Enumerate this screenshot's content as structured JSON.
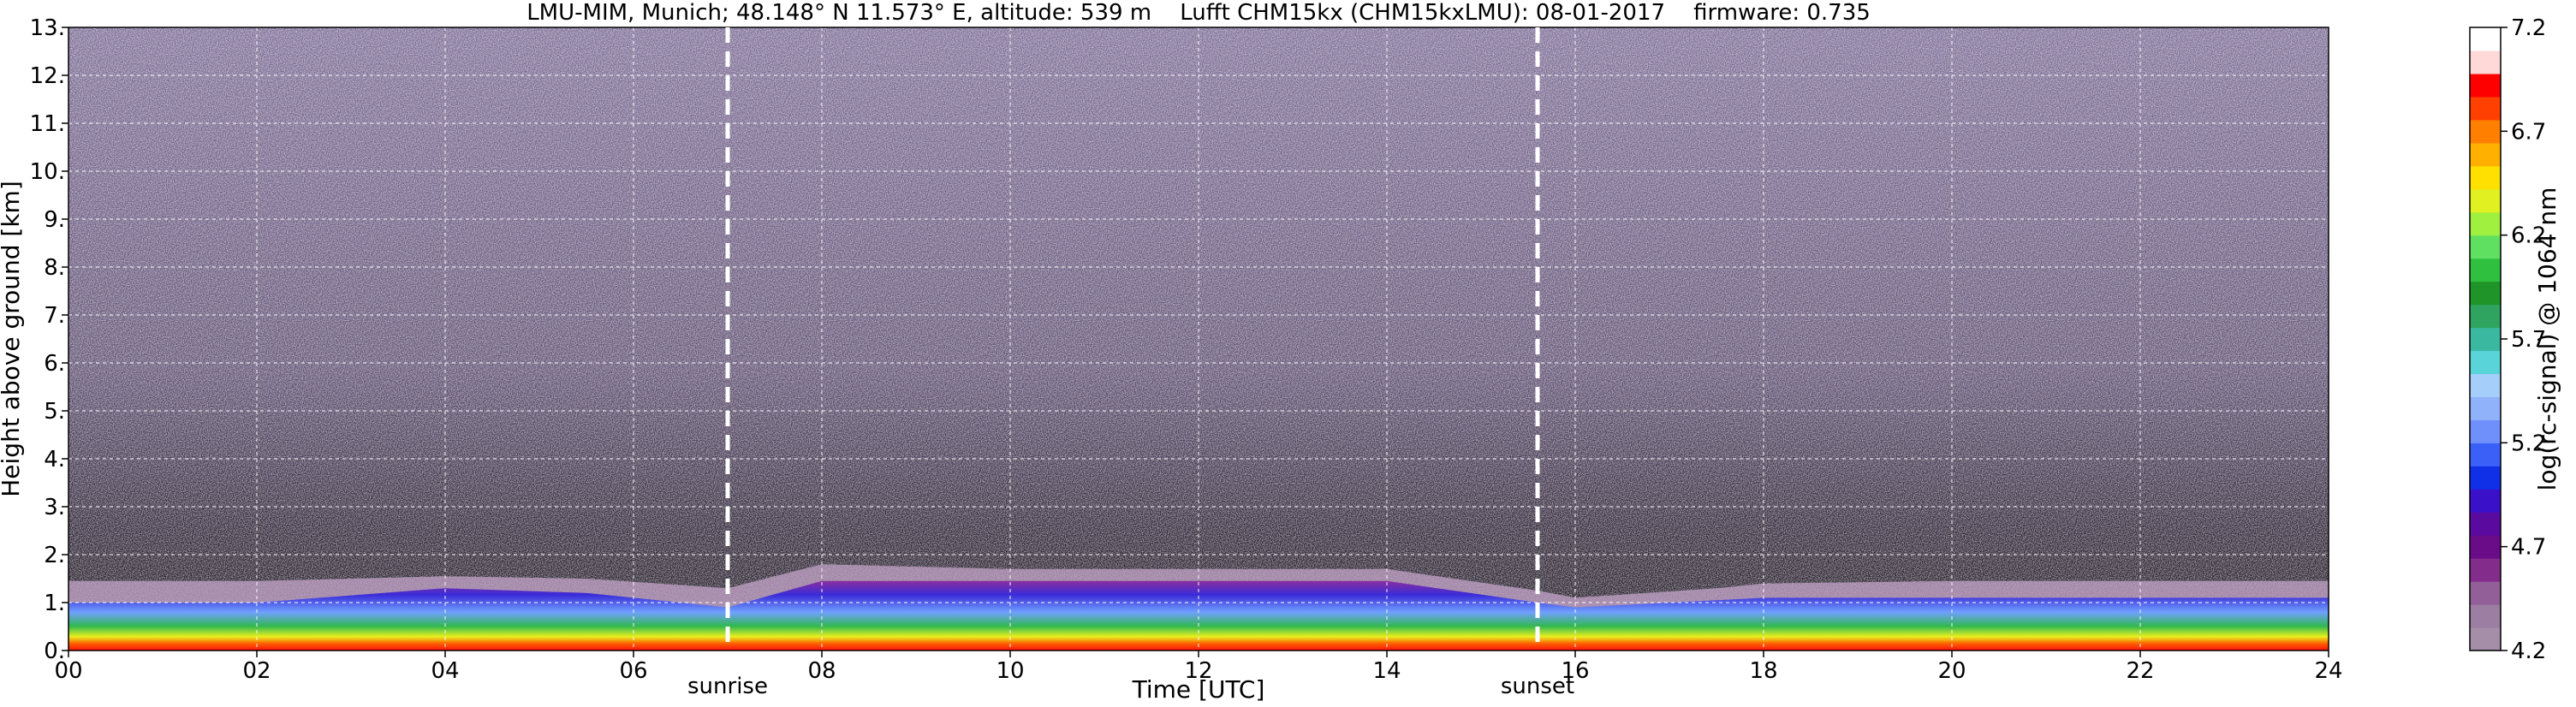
{
  "chart_data": {
    "type": "heatmap",
    "title": "LMU-MIM, Munich; 48.148° N 11.573° E, altitude: 539 m    Lufft CHM15kx (CHM15kxLMU): 08-01-2017    firmware: 0.735",
    "xlabel": "Time [UTC]",
    "ylabel": "Height above ground [km]",
    "xlim": [
      0,
      24
    ],
    "ylim": [
      0,
      13
    ],
    "xticks": [
      0,
      2,
      4,
      6,
      8,
      10,
      12,
      14,
      16,
      18,
      20,
      22,
      24
    ],
    "xtick_labels": [
      "00",
      "02",
      "04",
      "06",
      "08",
      "10",
      "12",
      "14",
      "16",
      "18",
      "20",
      "22",
      "24"
    ],
    "yticks": [
      0,
      1,
      2,
      3,
      4,
      5,
      6,
      7,
      8,
      9,
      10,
      11,
      12,
      13
    ],
    "ytick_labels": [
      "0.",
      "1.",
      "2.",
      "3.",
      "4.",
      "5.",
      "6.",
      "7.",
      "8.",
      "9.",
      "10.",
      "11.",
      "12.",
      "13."
    ],
    "grid": true,
    "colorbar": {
      "label": "log(rc-signal) @ 1064 nm",
      "range": [
        4.2,
        7.2
      ],
      "ticks": [
        4.2,
        4.7,
        5.2,
        5.7,
        6.2,
        6.7,
        7.2
      ],
      "tick_labels": [
        "4.2",
        "4.7",
        "5.2",
        "5.7",
        "6.2",
        "6.7",
        "7.2"
      ],
      "colors": [
        "#a48ea8",
        "#9c7ea2",
        "#935f99",
        "#832c8c",
        "#6a0c88",
        "#5a0a9e",
        "#3a10c8",
        "#1030e8",
        "#3a60f8",
        "#6f90fb",
        "#90b2fb",
        "#a6cefa",
        "#59d4d8",
        "#3ab8a0",
        "#2ea460",
        "#1f9428",
        "#30c040",
        "#60e060",
        "#a0f040",
        "#e0f020",
        "#ffe000",
        "#ffb000",
        "#ff8000",
        "#ff4000",
        "#ff0000",
        "#ffd8d8",
        "#ffffff"
      ]
    },
    "annotations": [
      {
        "label": "sunrise",
        "x": 7.0
      },
      {
        "label": "sunset",
        "x": 15.6
      }
    ],
    "layers": [
      {
        "t": [
          0,
          2,
          4,
          5.5,
          7,
          8,
          10,
          12,
          14,
          15.6,
          16,
          17.5,
          18,
          20,
          22,
          24
        ],
        "top": [
          1.45,
          1.45,
          1.55,
          1.5,
          1.3,
          1.8,
          1.7,
          1.7,
          1.7,
          1.25,
          1.1,
          1.3,
          1.4,
          1.45,
          1.45,
          1.45
        ]
      },
      {
        "t": [
          0,
          2,
          4,
          5.5,
          7,
          8,
          10,
          12,
          14,
          15.6,
          16,
          17.5,
          18,
          20,
          22,
          24
        ],
        "top": [
          1.0,
          1.0,
          1.3,
          1.2,
          0.9,
          1.45,
          1.45,
          1.45,
          1.45,
          1.0,
          0.9,
          1.05,
          1.1,
          1.1,
          1.1,
          1.1
        ]
      }
    ]
  }
}
